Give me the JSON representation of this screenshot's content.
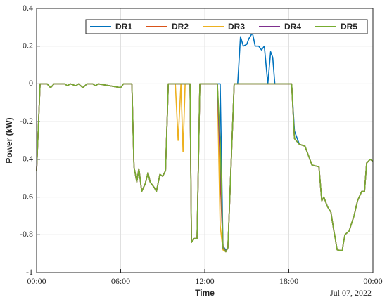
{
  "chart_data": {
    "type": "line",
    "xlabel": "Time",
    "ylabel": "Power (kW)",
    "date_label": "Jul 07, 2022",
    "x": [
      0,
      0.25,
      0.75,
      1.0,
      1.25,
      2.0,
      2.2,
      2.4,
      2.8,
      3.0,
      3.3,
      3.6,
      4.0,
      4.2,
      4.4,
      6.0,
      6.2,
      6.8,
      6.95,
      7.15,
      7.3,
      7.5,
      7.75,
      7.95,
      8.1,
      8.4,
      8.55,
      8.8,
      9.0,
      9.2,
      9.4,
      9.9,
      10.1,
      10.3,
      10.45,
      10.6,
      10.95,
      11.05,
      11.25,
      11.45,
      11.65,
      12.5,
      12.9,
      13.1,
      13.3,
      13.5,
      13.65,
      14.1,
      14.35,
      14.55,
      14.75,
      15.0,
      15.15,
      15.4,
      15.6,
      15.85,
      16.05,
      16.25,
      16.5,
      16.7,
      16.85,
      17.0,
      18.2,
      18.4,
      18.75,
      19.15,
      19.4,
      19.65,
      20.15,
      20.35,
      20.5,
      20.75,
      21.0,
      21.15,
      21.45,
      21.8,
      22.0,
      22.3,
      22.65,
      22.9,
      23.2,
      23.4,
      23.55,
      23.8,
      24.0
    ],
    "series": [
      {
        "name": "DR1",
        "color": "#0072bd",
        "values": [
          -0.46,
          0,
          0,
          -0.02,
          0,
          0,
          -0.01,
          0,
          -0.01,
          0,
          -0.02,
          0,
          0,
          -0.01,
          0,
          -0.02,
          0,
          0,
          -0.44,
          -0.52,
          -0.45,
          -0.57,
          -0.53,
          -0.47,
          -0.52,
          -0.55,
          -0.57,
          -0.48,
          -0.49,
          -0.46,
          0,
          0,
          0,
          0,
          0,
          0,
          0,
          -0.84,
          -0.82,
          -0.82,
          0,
          0,
          0,
          0,
          -0.86,
          -0.88,
          -0.87,
          0,
          0,
          0.25,
          0.2,
          0.21,
          0.24,
          0.27,
          0.2,
          0.2,
          0.18,
          0.2,
          0,
          0.17,
          0.14,
          0,
          0,
          -0.25,
          -0.32,
          -0.33,
          -0.38,
          -0.43,
          -0.44,
          -0.62,
          -0.6,
          -0.65,
          -0.68,
          -0.75,
          -0.88,
          -0.885,
          -0.8,
          -0.78,
          -0.7,
          -0.62,
          -0.57,
          -0.57,
          -0.42,
          -0.4,
          -0.41
        ]
      },
      {
        "name": "DR2",
        "color": "#d95319",
        "values": [
          -0.46,
          0,
          0,
          -0.02,
          0,
          0,
          -0.01,
          0,
          -0.01,
          0,
          -0.02,
          0,
          0,
          -0.01,
          0,
          -0.02,
          0,
          0,
          -0.44,
          -0.52,
          -0.45,
          -0.57,
          -0.53,
          -0.47,
          -0.52,
          -0.55,
          -0.57,
          -0.48,
          -0.49,
          -0.46,
          0,
          0,
          0,
          0,
          0,
          0,
          0,
          -0.84,
          -0.82,
          -0.82,
          0,
          0,
          0,
          -0.5,
          -0.86,
          -0.89,
          -0.87,
          0,
          0,
          0,
          0,
          0,
          0,
          0,
          0,
          0,
          0,
          0,
          0,
          0,
          0,
          0,
          0,
          -0.29,
          -0.32,
          -0.33,
          -0.38,
          -0.43,
          -0.44,
          -0.62,
          -0.6,
          -0.65,
          -0.68,
          -0.75,
          -0.88,
          -0.885,
          -0.8,
          -0.78,
          -0.7,
          -0.62,
          -0.57,
          -0.57,
          -0.42,
          -0.4,
          -0.41
        ]
      },
      {
        "name": "DR3",
        "color": "#edb120",
        "values": [
          -0.46,
          0,
          0,
          -0.02,
          0,
          0,
          -0.01,
          0,
          -0.01,
          0,
          -0.02,
          0,
          0,
          -0.01,
          0,
          -0.02,
          0,
          0,
          -0.44,
          -0.52,
          -0.45,
          -0.57,
          -0.53,
          -0.47,
          -0.52,
          -0.55,
          -0.57,
          -0.48,
          -0.49,
          -0.46,
          0,
          0,
          -0.3,
          0,
          -0.36,
          0,
          0,
          -0.84,
          -0.82,
          -0.82,
          0,
          0,
          0,
          -0.75,
          -0.88,
          -0.89,
          -0.87,
          0,
          0,
          0,
          0,
          0,
          0,
          0,
          0,
          0,
          0,
          0,
          0,
          0,
          0,
          0,
          0,
          -0.29,
          -0.32,
          -0.33,
          -0.38,
          -0.43,
          -0.44,
          -0.62,
          -0.6,
          -0.65,
          -0.68,
          -0.75,
          -0.88,
          -0.885,
          -0.8,
          -0.78,
          -0.7,
          -0.62,
          -0.57,
          -0.57,
          -0.42,
          -0.4,
          -0.41
        ]
      },
      {
        "name": "DR4",
        "color": "#7e2f8e",
        "values": [
          -0.46,
          0,
          0,
          -0.02,
          0,
          0,
          -0.01,
          0,
          -0.01,
          0,
          -0.02,
          0,
          0,
          -0.01,
          0,
          -0.02,
          0,
          0,
          -0.44,
          -0.52,
          -0.45,
          -0.57,
          -0.53,
          -0.47,
          -0.52,
          -0.55,
          -0.57,
          -0.48,
          -0.49,
          -0.46,
          0,
          0,
          0,
          0,
          0,
          0,
          0,
          -0.84,
          -0.82,
          -0.82,
          0,
          0,
          0,
          -0.4,
          -0.87,
          -0.89,
          -0.87,
          0,
          0,
          0,
          0,
          0,
          0,
          0,
          0,
          0,
          0,
          0,
          0,
          0,
          0,
          0,
          0,
          -0.29,
          -0.32,
          -0.33,
          -0.38,
          -0.43,
          -0.44,
          -0.62,
          -0.6,
          -0.65,
          -0.68,
          -0.75,
          -0.88,
          -0.885,
          -0.8,
          -0.78,
          -0.7,
          -0.62,
          -0.57,
          -0.57,
          -0.42,
          -0.4,
          -0.41
        ]
      },
      {
        "name": "DR5",
        "color": "#77ac30",
        "values": [
          -0.46,
          0,
          0,
          -0.02,
          0,
          0,
          -0.01,
          0,
          -0.01,
          0,
          -0.02,
          0,
          0,
          -0.01,
          0,
          -0.02,
          0,
          0,
          -0.44,
          -0.52,
          -0.45,
          -0.57,
          -0.53,
          -0.47,
          -0.52,
          -0.55,
          -0.57,
          -0.48,
          -0.49,
          -0.46,
          0,
          0,
          0,
          0,
          0,
          0,
          0,
          -0.84,
          -0.82,
          -0.82,
          0,
          0,
          0,
          -0.3,
          -0.87,
          -0.89,
          -0.87,
          0,
          0,
          0,
          0,
          0,
          0,
          0,
          0,
          0,
          0,
          0,
          0,
          0,
          0,
          0,
          0,
          -0.29,
          -0.32,
          -0.33,
          -0.38,
          -0.43,
          -0.44,
          -0.62,
          -0.6,
          -0.65,
          -0.68,
          -0.75,
          -0.88,
          -0.885,
          -0.8,
          -0.78,
          -0.7,
          -0.62,
          -0.57,
          -0.57,
          -0.42,
          -0.4,
          -0.41
        ]
      }
    ],
    "xlim": [
      0,
      24
    ],
    "xticks": [
      {
        "value": 0,
        "label": "00:00"
      },
      {
        "value": 6,
        "label": "06:00"
      },
      {
        "value": 12,
        "label": "12:00"
      },
      {
        "value": 18,
        "label": "18:00"
      },
      {
        "value": 24,
        "label": "00:00"
      }
    ],
    "ylim": [
      -1,
      0.4
    ],
    "yticks": [
      -1,
      -0.8,
      -0.6,
      -0.4,
      -0.2,
      0,
      0.2,
      0.4
    ],
    "grid": true,
    "legend": "northeast"
  }
}
